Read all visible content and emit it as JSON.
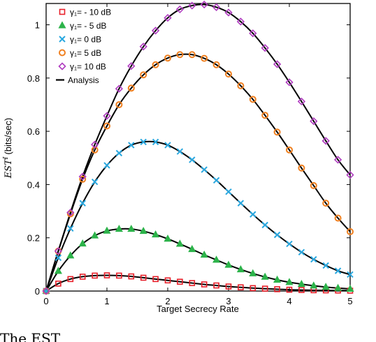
{
  "chart_data": {
    "type": "line",
    "xlabel": "Target Secrecy Rate",
    "ylabel": "EST",
    "ylabel_sup": "I",
    "ylabel_unit": "(bits/sec)",
    "xlim": [
      0,
      5
    ],
    "ylim": [
      0,
      1.08
    ],
    "xticks": [
      0,
      1,
      2,
      3,
      4,
      5
    ],
    "yticks": [
      0,
      0.2,
      0.4,
      0.6,
      0.8,
      1
    ],
    "grid": false,
    "legend_position": "top-left",
    "analysis_label": "Analysis",
    "analysis_color": "#000000",
    "x": [
      0,
      0.2,
      0.4,
      0.6,
      0.8,
      1.0,
      1.2,
      1.4,
      1.6,
      1.8,
      2.0,
      2.2,
      2.4,
      2.6,
      2.8,
      3.0,
      3.2,
      3.4,
      3.6,
      3.8,
      4.0,
      4.2,
      4.4,
      4.6,
      4.8,
      5.0
    ],
    "series": [
      {
        "name": "γ₁= - 10 dB",
        "marker": "square",
        "color": "#e8202a",
        "values": [
          0,
          0.028,
          0.045,
          0.054,
          0.058,
          0.059,
          0.058,
          0.055,
          0.05,
          0.045,
          0.04,
          0.035,
          0.03,
          0.025,
          0.021,
          0.017,
          0.014,
          0.011,
          0.009,
          0.007,
          0.005,
          0.004,
          0.003,
          0.0025,
          0.002,
          0.0015
        ]
      },
      {
        "name": "γ₁= - 5 dB",
        "marker": "triangle",
        "color": "#2cb34a",
        "values": [
          0,
          0.075,
          0.133,
          0.178,
          0.208,
          0.226,
          0.233,
          0.233,
          0.225,
          0.212,
          0.196,
          0.177,
          0.157,
          0.136,
          0.117,
          0.098,
          0.081,
          0.066,
          0.053,
          0.042,
          0.033,
          0.026,
          0.02,
          0.015,
          0.011,
          0.008
        ]
      },
      {
        "name": "γ₁= 0 dB",
        "marker": "x",
        "color": "#29a8e0",
        "values": [
          0,
          0.125,
          0.235,
          0.33,
          0.41,
          0.472,
          0.518,
          0.548,
          0.56,
          0.56,
          0.548,
          0.524,
          0.493,
          0.456,
          0.416,
          0.373,
          0.33,
          0.288,
          0.248,
          0.211,
          0.177,
          0.146,
          0.119,
          0.096,
          0.076,
          0.062
        ]
      },
      {
        "name": "γ₁= 5 dB",
        "marker": "circle",
        "color": "#f08020",
        "values": [
          0,
          0.15,
          0.29,
          0.42,
          0.53,
          0.62,
          0.7,
          0.762,
          0.812,
          0.85,
          0.875,
          0.888,
          0.888,
          0.874,
          0.85,
          0.815,
          0.771,
          0.72,
          0.66,
          0.597,
          0.53,
          0.462,
          0.396,
          0.33,
          0.274,
          0.223
        ]
      },
      {
        "name": "γ₁= 10 dB",
        "marker": "diamond",
        "color": "#b03cc0",
        "values": [
          0,
          0.15,
          0.295,
          0.43,
          0.55,
          0.658,
          0.76,
          0.845,
          0.918,
          0.978,
          1.026,
          1.058,
          1.072,
          1.076,
          1.066,
          1.046,
          1.012,
          0.968,
          0.913,
          0.852,
          0.784,
          0.712,
          0.638,
          0.564,
          0.493,
          0.436
        ]
      }
    ]
  },
  "caption": {
    "text": "The EST"
  }
}
